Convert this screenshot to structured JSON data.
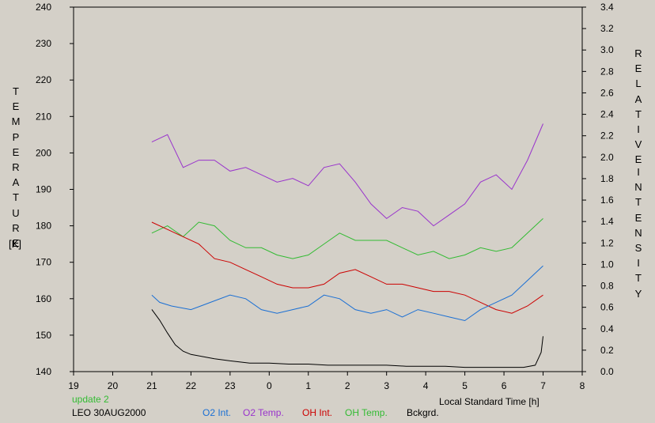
{
  "chart_data": {
    "type": "line",
    "left_axis": {
      "label_letters": [
        "T",
        "E",
        "M",
        "P",
        "E",
        "R",
        "A",
        "T",
        "U",
        "R",
        "E"
      ],
      "unit": "[K]",
      "min": 140,
      "max": 240,
      "ticks": [
        "140",
        "150",
        "160",
        "170",
        "180",
        "190",
        "200",
        "210",
        "220",
        "230",
        "240"
      ]
    },
    "right_axis": {
      "label_letters_1": [
        "R",
        "E",
        "L",
        "A",
        "T",
        "I",
        "V",
        "E"
      ],
      "label_letters_2": [
        "I",
        "N",
        "T",
        "E",
        "N",
        "S",
        "I",
        "T",
        "Y"
      ],
      "min": 0.0,
      "max": 3.4,
      "ticks": [
        "0.0",
        "0.2",
        "0.4",
        "0.6",
        "0.8",
        "1.0",
        "1.2",
        "1.4",
        "1.6",
        "1.8",
        "2.0",
        "2.2",
        "2.4",
        "2.6",
        "2.8",
        "3.0",
        "3.2",
        "3.4"
      ]
    },
    "x_axis": {
      "label": "Local Standard Time [h]",
      "min": 19,
      "max": 32,
      "ticks": [
        "19",
        "20",
        "21",
        "22",
        "23",
        "0",
        "1",
        "2",
        "3",
        "4",
        "5",
        "6",
        "7",
        "8"
      ]
    },
    "status": "update 2",
    "station": "LEO 30AUG2000",
    "grid": false,
    "series": [
      {
        "name": "O2 Int.",
        "color": "#1a6fd4",
        "axis": "temperature",
        "x": [
          21.0,
          21.2,
          21.5,
          22.0,
          22.5,
          23.0,
          23.4,
          23.8,
          24.2,
          24.6,
          25.0,
          25.4,
          25.8,
          26.2,
          26.6,
          27.0,
          27.4,
          27.8,
          28.2,
          28.6,
          29.0,
          29.4,
          29.8,
          30.2,
          30.6,
          31.0
        ],
        "y": [
          161,
          159,
          158,
          157,
          159,
          161,
          160,
          157,
          156,
          157,
          158,
          161,
          160,
          157,
          156,
          157,
          155,
          157,
          156,
          155,
          154,
          157,
          159,
          161,
          165,
          169
        ]
      },
      {
        "name": "O2 Temp.",
        "color": "#9933cc",
        "axis": "temperature",
        "x": [
          21.0,
          21.4,
          21.8,
          22.2,
          22.6,
          23.0,
          23.4,
          23.8,
          24.2,
          24.6,
          25.0,
          25.4,
          25.8,
          26.2,
          26.6,
          27.0,
          27.4,
          27.8,
          28.2,
          28.6,
          29.0,
          29.4,
          29.8,
          30.2,
          30.6,
          31.0
        ],
        "y": [
          203,
          205,
          196,
          198,
          198,
          195,
          196,
          194,
          192,
          193,
          191,
          196,
          197,
          192,
          186,
          182,
          185,
          184,
          180,
          183,
          186,
          192,
          194,
          190,
          198,
          208
        ]
      },
      {
        "name": "OH Int.",
        "color": "#cc0000",
        "axis": "temperature",
        "x": [
          21.0,
          21.4,
          21.8,
          22.2,
          22.6,
          23.0,
          23.4,
          23.8,
          24.2,
          24.6,
          25.0,
          25.4,
          25.8,
          26.2,
          26.6,
          27.0,
          27.4,
          27.8,
          28.2,
          28.6,
          29.0,
          29.4,
          29.8,
          30.2,
          30.6,
          31.0
        ],
        "y": [
          181,
          179,
          177,
          175,
          171,
          170,
          168,
          166,
          164,
          163,
          163,
          164,
          167,
          168,
          166,
          164,
          164,
          163,
          162,
          162,
          161,
          159,
          157,
          156,
          158,
          161
        ]
      },
      {
        "name": "OH Temp.",
        "color": "#33bb33",
        "axis": "temperature",
        "x": [
          21.0,
          21.4,
          21.8,
          22.2,
          22.6,
          23.0,
          23.4,
          23.8,
          24.2,
          24.6,
          25.0,
          25.4,
          25.8,
          26.2,
          26.6,
          27.0,
          27.4,
          27.8,
          28.2,
          28.6,
          29.0,
          29.4,
          29.8,
          30.2,
          30.6,
          31.0
        ],
        "y": [
          178,
          180,
          177,
          181,
          180,
          176,
          174,
          174,
          172,
          171,
          172,
          175,
          178,
          176,
          176,
          176,
          174,
          172,
          173,
          171,
          172,
          174,
          173,
          174,
          178,
          182
        ]
      },
      {
        "name": "Bckgrd.",
        "color": "#000000",
        "axis": "intensity",
        "x": [
          21.0,
          21.2,
          21.4,
          21.6,
          21.8,
          22.0,
          22.3,
          22.6,
          23.0,
          23.5,
          24.0,
          24.5,
          25.0,
          25.5,
          26.0,
          26.5,
          27.0,
          27.5,
          28.0,
          28.5,
          29.0,
          29.5,
          30.0,
          30.5,
          30.8,
          30.95,
          31.0
        ],
        "y": [
          0.58,
          0.48,
          0.36,
          0.25,
          0.19,
          0.16,
          0.14,
          0.12,
          0.1,
          0.08,
          0.08,
          0.07,
          0.07,
          0.06,
          0.06,
          0.06,
          0.06,
          0.05,
          0.05,
          0.05,
          0.04,
          0.04,
          0.04,
          0.04,
          0.06,
          0.18,
          0.33
        ]
      }
    ]
  }
}
